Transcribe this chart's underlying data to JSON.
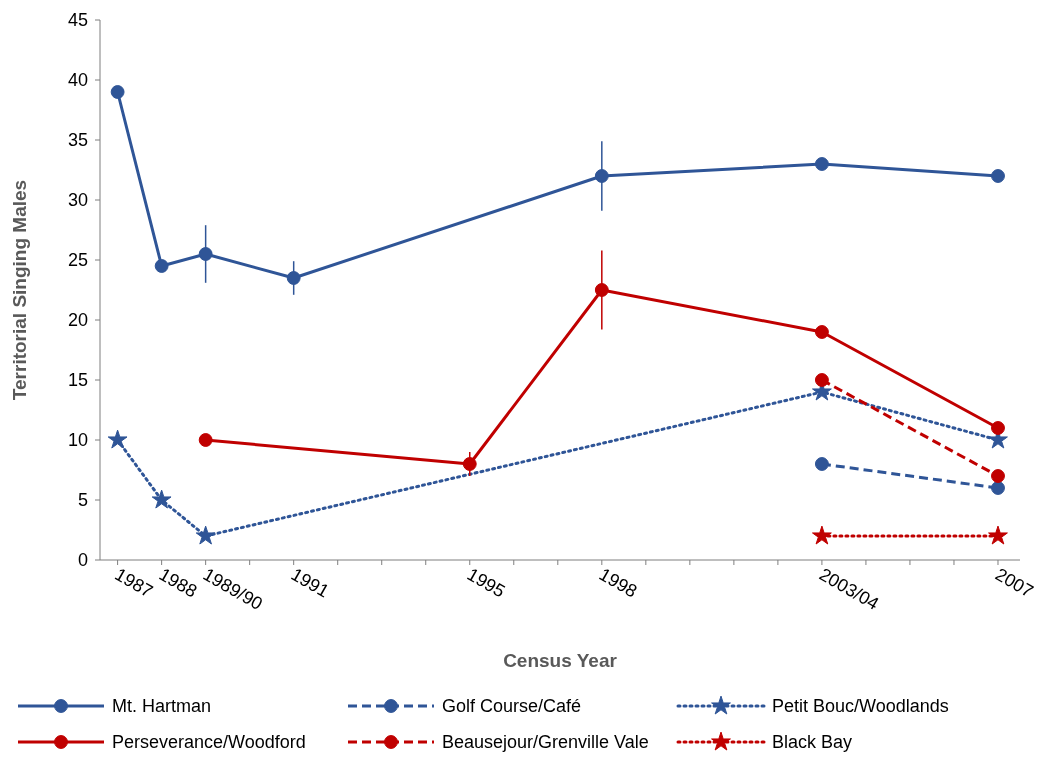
{
  "chart_data": {
    "type": "line",
    "xlabel": "Census Year",
    "ylabel": "Territorial Singing Males",
    "xlim": [
      1986.6,
      2007.5
    ],
    "ylim": [
      0,
      45
    ],
    "yticks": [
      0,
      5,
      10,
      15,
      20,
      25,
      30,
      35,
      40,
      45
    ],
    "xticks": [
      1987,
      1988,
      {
        "value": 1989,
        "label": "1989/90"
      },
      {
        "value": 1990,
        "label": null
      },
      1991,
      {
        "value": 1992,
        "label": null
      },
      {
        "value": 1993,
        "label": null
      },
      {
        "value": 1994,
        "label": null
      },
      1995,
      {
        "value": 1996,
        "label": null
      },
      {
        "value": 1997,
        "label": null
      },
      1998,
      {
        "value": 1999,
        "label": null
      },
      {
        "value": 2000,
        "label": null
      },
      {
        "value": 2001,
        "label": null
      },
      {
        "value": 2002,
        "label": null
      },
      {
        "value": 2003,
        "label": "2003/04"
      },
      {
        "value": 2004,
        "label": null
      },
      {
        "value": 2005,
        "label": null
      },
      {
        "value": 2006,
        "label": null
      },
      2007
    ],
    "grid": false,
    "legend": "bottom",
    "series": [
      {
        "name": "Mt. Hartman",
        "color": "#2f5597",
        "line_style": "solid",
        "marker": "circle",
        "x": [
          1987,
          1988,
          1989,
          1991,
          1998,
          2003,
          2007
        ],
        "values": [
          39,
          24.5,
          25.5,
          23.5,
          32,
          33,
          32
        ],
        "errors": [
          null,
          null,
          2.4,
          1.4,
          2.9,
          null,
          null
        ]
      },
      {
        "name": "Golf Course/Café",
        "color": "#2f5597",
        "line_style": "dashed",
        "marker": "circle",
        "x": [
          2003,
          2007
        ],
        "values": [
          8,
          6
        ]
      },
      {
        "name": "Petit Bouc/Woodlands",
        "color": "#2f5597",
        "line_style": "dotted",
        "marker": "star",
        "x": [
          1987,
          1988,
          1989,
          2003,
          2007
        ],
        "values": [
          10,
          5,
          2,
          14,
          10
        ]
      },
      {
        "name": "Perseverance/Woodford",
        "color": "#c00000",
        "line_style": "solid",
        "marker": "circle",
        "x": [
          1989,
          1995,
          1998,
          2003,
          2007
        ],
        "values": [
          10,
          8,
          22.5,
          19,
          11
        ],
        "errors": [
          null,
          1,
          3.3,
          null,
          null
        ]
      },
      {
        "name": "Beausejour/Grenville Vale",
        "color": "#c00000",
        "line_style": "dashed",
        "marker": "circle",
        "x": [
          2003,
          2007
        ],
        "values": [
          15,
          7
        ]
      },
      {
        "name": "Black Bay",
        "color": "#c00000",
        "line_style": "dotted",
        "marker": "star",
        "x": [
          2003,
          2007
        ],
        "values": [
          2,
          2
        ]
      }
    ]
  }
}
